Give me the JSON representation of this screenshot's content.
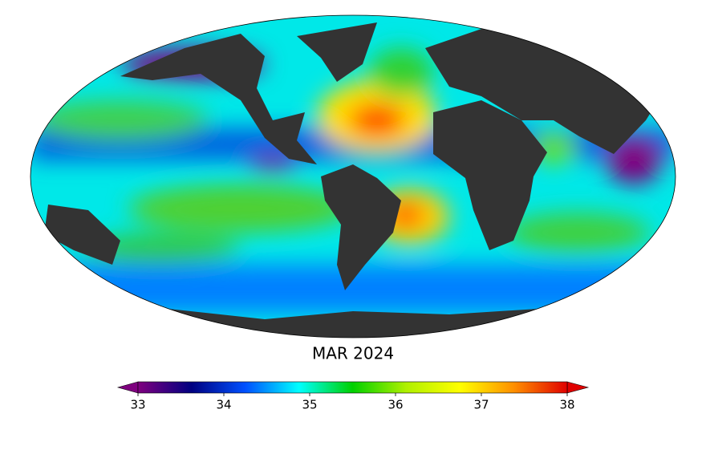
{
  "title": "MAR 2024",
  "colorbar": {
    "lim": [
      33,
      38
    ],
    "ticks": [
      33,
      34,
      35,
      36,
      37,
      38
    ],
    "colors": [
      "#7f007f",
      "#000080",
      "#0050ff",
      "#00ffff",
      "#00d000",
      "#b0f000",
      "#ffff00",
      "#ff9000",
      "#e00000"
    ]
  }
}
